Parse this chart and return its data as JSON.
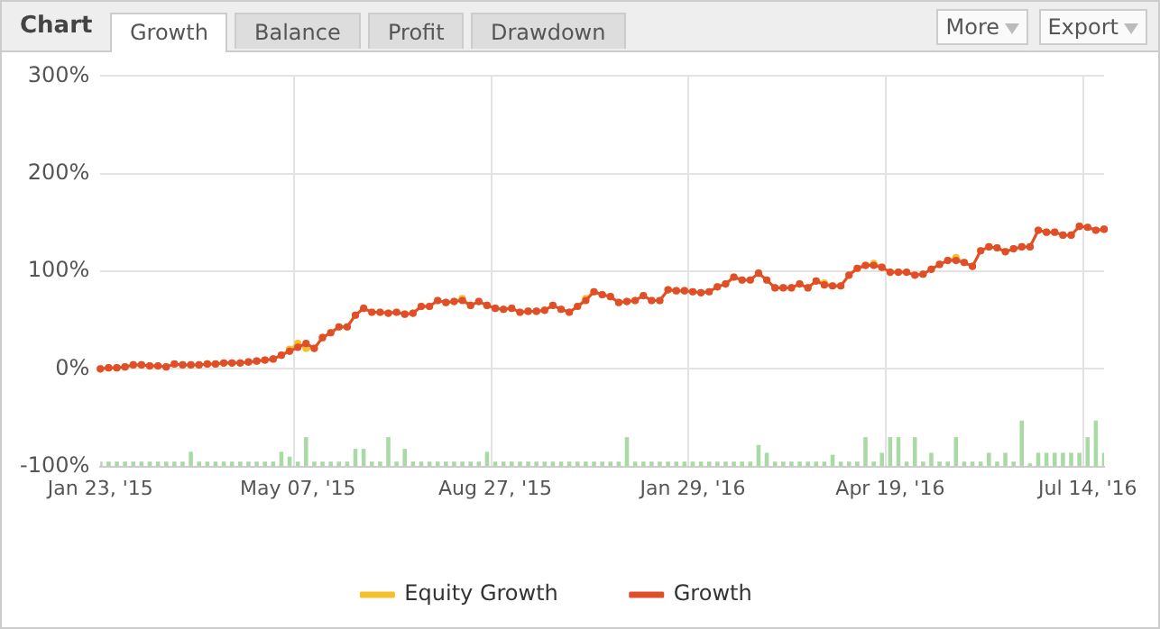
{
  "chart_data": {
    "type": "line",
    "title": "Chart",
    "annotations": [
      "Growth",
      "Balance",
      "Profit",
      "Drawdown",
      "More",
      "Export"
    ],
    "categories": [
      "Jan 23, '15",
      null,
      null,
      null,
      null,
      null,
      null,
      null,
      null,
      null,
      null,
      null,
      null,
      null,
      null,
      null,
      null,
      null,
      null,
      null,
      null,
      null,
      null,
      null,
      "May 07, '15",
      null,
      null,
      null,
      null,
      null,
      null,
      null,
      null,
      null,
      null,
      null,
      null,
      null,
      null,
      null,
      null,
      null,
      null,
      null,
      null,
      null,
      null,
      null,
      "Aug 27, '15",
      null,
      null,
      null,
      null,
      null,
      null,
      null,
      null,
      null,
      null,
      null,
      null,
      null,
      null,
      null,
      null,
      null,
      null,
      null,
      null,
      null,
      null,
      null,
      "Jan 29, '16",
      null,
      null,
      null,
      null,
      null,
      null,
      null,
      null,
      null,
      null,
      null,
      null,
      null,
      null,
      null,
      null,
      null,
      null,
      null,
      null,
      null,
      null,
      null,
      "Apr 19, '16",
      null,
      null,
      null,
      null,
      null,
      null,
      null,
      null,
      null,
      null,
      null,
      null,
      null,
      null,
      null,
      null,
      null,
      null,
      null,
      null,
      null,
      null,
      null,
      "Jul 14, '16",
      null,
      null
    ],
    "series": [
      {
        "name": "Equity Growth",
        "color": "#f5c02c",
        "values": [
          0,
          1,
          1,
          2,
          4,
          4,
          3,
          3,
          2,
          5,
          4,
          4,
          4,
          5,
          5,
          6,
          6,
          6,
          7,
          8,
          9,
          10,
          14,
          20,
          26,
          21,
          21,
          32,
          37,
          43,
          43,
          55,
          62,
          58,
          58,
          57,
          58,
          56,
          57,
          64,
          64,
          70,
          68,
          69,
          72,
          65,
          69,
          65,
          62,
          61,
          62,
          58,
          59,
          59,
          60,
          65,
          61,
          58,
          64,
          72,
          79,
          76,
          74,
          68,
          69,
          70,
          75,
          70,
          70,
          81,
          80,
          80,
          79,
          78,
          79,
          84,
          87,
          94,
          91,
          91,
          98,
          91,
          83,
          83,
          83,
          87,
          83,
          90,
          88,
          85,
          85,
          96,
          103,
          106,
          108,
          104,
          99,
          99,
          99,
          96,
          97,
          102,
          107,
          111,
          114,
          109,
          105,
          121,
          125,
          124,
          120,
          123,
          125,
          125,
          142,
          140,
          140,
          137,
          137,
          146,
          145,
          142,
          143
        ]
      },
      {
        "name": "Growth",
        "color": "#e04e2c",
        "values": [
          0,
          1,
          1,
          2,
          4,
          4,
          3,
          3,
          2,
          5,
          4,
          4,
          4,
          5,
          5,
          6,
          6,
          6,
          7,
          8,
          9,
          10,
          14,
          18,
          22,
          26,
          21,
          32,
          37,
          43,
          43,
          55,
          62,
          58,
          58,
          57,
          58,
          56,
          57,
          64,
          64,
          70,
          68,
          69,
          70,
          65,
          69,
          65,
          62,
          61,
          62,
          58,
          59,
          59,
          60,
          65,
          61,
          58,
          64,
          70,
          79,
          76,
          74,
          68,
          69,
          70,
          75,
          70,
          70,
          81,
          80,
          80,
          79,
          78,
          79,
          84,
          87,
          94,
          91,
          91,
          98,
          91,
          83,
          83,
          83,
          87,
          83,
          90,
          86,
          85,
          85,
          96,
          103,
          106,
          106,
          104,
          99,
          99,
          99,
          96,
          97,
          102,
          107,
          111,
          111,
          109,
          105,
          121,
          125,
          124,
          120,
          123,
          125,
          125,
          142,
          140,
          140,
          137,
          137,
          146,
          145,
          142,
          143
        ]
      },
      {
        "type": "bar",
        "color": "#a9d9a4",
        "values": [
          5,
          5,
          5,
          5,
          5,
          5,
          5,
          5,
          5,
          5,
          5,
          15,
          5,
          5,
          5,
          5,
          5,
          5,
          5,
          5,
          5,
          5,
          15,
          10,
          5,
          30,
          5,
          5,
          5,
          5,
          5,
          18,
          18,
          5,
          5,
          30,
          5,
          18,
          5,
          5,
          5,
          5,
          5,
          5,
          5,
          5,
          5,
          15,
          5,
          5,
          5,
          5,
          5,
          5,
          5,
          5,
          5,
          5,
          5,
          5,
          5,
          5,
          5,
          5,
          30,
          5,
          5,
          5,
          5,
          5,
          5,
          5,
          5,
          5,
          5,
          5,
          5,
          5,
          5,
          5,
          22,
          14,
          5,
          5,
          5,
          5,
          5,
          5,
          5,
          12,
          5,
          5,
          5,
          30,
          5,
          14,
          30,
          30,
          5,
          30,
          5,
          14,
          5,
          5,
          30,
          5,
          5,
          5,
          14,
          5,
          14,
          5,
          47,
          3,
          14,
          14,
          14,
          14,
          14,
          14,
          30,
          47,
          14
        ],
        "base": [
          -100,
          -100,
          -100,
          -100,
          -100,
          -100,
          -100,
          -100,
          -100,
          -100,
          -100,
          -100,
          -100,
          -100,
          -100,
          -100,
          -100,
          -100,
          -100,
          -100,
          -100,
          -100,
          -100,
          -100,
          -100,
          -100,
          -100,
          -100,
          -100,
          -100,
          -100,
          -100,
          -100,
          -100,
          -100,
          -100,
          -100,
          -100,
          -100,
          -100,
          -100,
          -100,
          -100,
          -100,
          -100,
          -100,
          -100,
          -100,
          -100,
          -100,
          -100,
          -100,
          -100,
          -100,
          -100,
          -100,
          -100,
          -100,
          -100,
          -100,
          -100,
          -100,
          -100,
          -100,
          -100,
          -100,
          -100,
          -100,
          -100,
          -100,
          -100,
          -100,
          -100,
          -100,
          -100,
          -100,
          -100,
          -100,
          -100,
          -100,
          -100,
          -100,
          -100,
          -100,
          -100,
          -100,
          -100,
          -100,
          -100,
          -100,
          -100,
          -100,
          -100,
          -100,
          -100,
          -100,
          -100,
          -100,
          -100,
          -100,
          -100,
          -100,
          -100,
          -100,
          -100,
          -100,
          -100,
          -100,
          -100,
          -100,
          -100,
          -100,
          -100,
          -100,
          -100,
          -100,
          -100,
          -100,
          -100,
          -100,
          -100,
          -100,
          -100
        ]
      }
    ],
    "ylim": [
      -100,
      300
    ],
    "yticks": [
      {
        "value": -100,
        "label": "-100%"
      },
      {
        "value": 0,
        "label": "0%"
      },
      {
        "value": 100,
        "label": "100%"
      },
      {
        "value": 200,
        "label": "200%"
      },
      {
        "value": 300,
        "label": "300%"
      }
    ],
    "grid": true,
    "legend": "bottom",
    "marker": "circle",
    "line_style": "solid"
  }
}
